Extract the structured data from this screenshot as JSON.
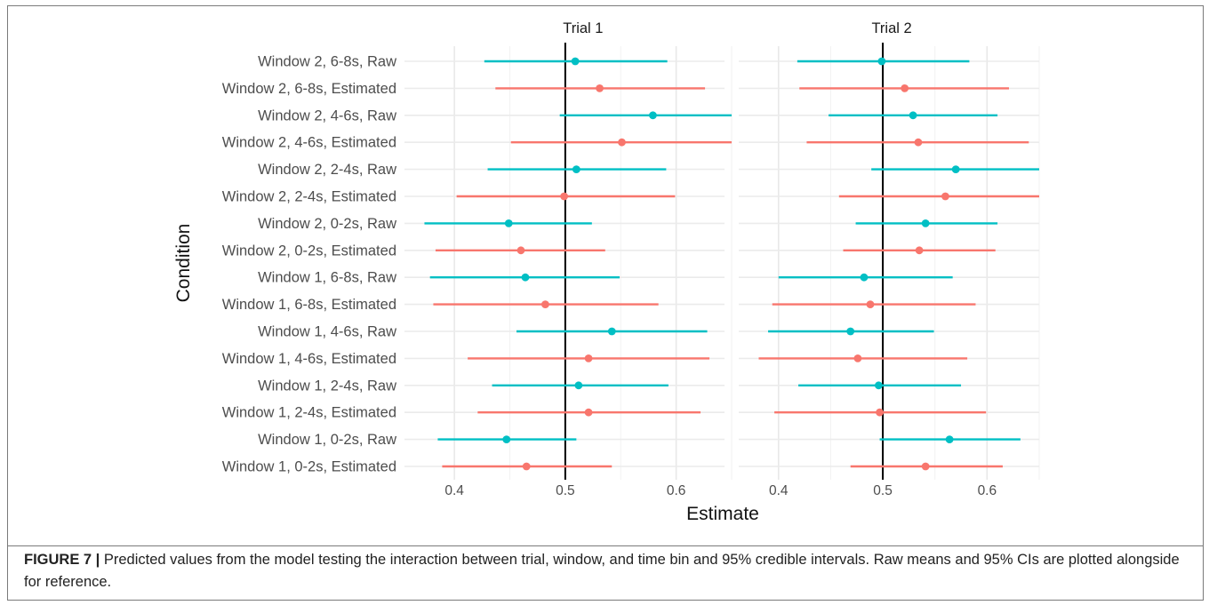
{
  "chart_data": {
    "type": "scatter",
    "xlabel": "Estimate",
    "ylabel": "Condition",
    "xlim": [
      0.355,
      0.65
    ],
    "x_ticks": [
      0.4,
      0.5,
      0.6
    ],
    "reference_line": 0.5,
    "grid": true,
    "legend": "none",
    "colors": {
      "Estimated": "#F8766D",
      "Raw": "#00BFC4"
    },
    "conditions": [
      "Window 2, 6-8s, Raw",
      "Window 2, 6-8s, Estimated",
      "Window 2, 4-6s, Raw",
      "Window 2, 4-6s, Estimated",
      "Window 2, 2-4s, Raw",
      "Window 2, 2-4s, Estimated",
      "Window 2, 0-2s, Raw",
      "Window 2, 0-2s, Estimated",
      "Window 1, 6-8s, Raw",
      "Window 1, 6-8s, Estimated",
      "Window 1, 4-6s, Raw",
      "Window 1, 4-6s, Estimated",
      "Window 1, 2-4s, Raw",
      "Window 1, 2-4s, Estimated",
      "Window 1, 0-2s, Raw",
      "Window 1, 0-2s, Estimated"
    ],
    "panels": [
      {
        "title": "Trial 1",
        "points": [
          {
            "est": 0.509,
            "lo": 0.427,
            "hi": 0.592
          },
          {
            "est": 0.531,
            "lo": 0.437,
            "hi": 0.626
          },
          {
            "est": 0.579,
            "lo": 0.495,
            "hi": 0.664
          },
          {
            "est": 0.551,
            "lo": 0.451,
            "hi": 0.651
          },
          {
            "est": 0.51,
            "lo": 0.43,
            "hi": 0.591
          },
          {
            "est": 0.499,
            "lo": 0.402,
            "hi": 0.599
          },
          {
            "est": 0.449,
            "lo": 0.373,
            "hi": 0.524
          },
          {
            "est": 0.46,
            "lo": 0.383,
            "hi": 0.536
          },
          {
            "est": 0.464,
            "lo": 0.378,
            "hi": 0.549
          },
          {
            "est": 0.482,
            "lo": 0.381,
            "hi": 0.584
          },
          {
            "est": 0.542,
            "lo": 0.456,
            "hi": 0.628
          },
          {
            "est": 0.521,
            "lo": 0.412,
            "hi": 0.63
          },
          {
            "est": 0.512,
            "lo": 0.434,
            "hi": 0.593
          },
          {
            "est": 0.521,
            "lo": 0.421,
            "hi": 0.622
          },
          {
            "est": 0.447,
            "lo": 0.385,
            "hi": 0.51
          },
          {
            "est": 0.465,
            "lo": 0.389,
            "hi": 0.542
          }
        ]
      },
      {
        "title": "Trial 2",
        "points": [
          {
            "est": 0.499,
            "lo": 0.418,
            "hi": 0.583
          },
          {
            "est": 0.521,
            "lo": 0.42,
            "hi": 0.621
          },
          {
            "est": 0.529,
            "lo": 0.448,
            "hi": 0.61
          },
          {
            "est": 0.534,
            "lo": 0.427,
            "hi": 0.64
          },
          {
            "est": 0.57,
            "lo": 0.489,
            "hi": 0.65
          },
          {
            "est": 0.56,
            "lo": 0.458,
            "hi": 0.65
          },
          {
            "est": 0.541,
            "lo": 0.474,
            "hi": 0.61
          },
          {
            "est": 0.535,
            "lo": 0.462,
            "hi": 0.608
          },
          {
            "est": 0.482,
            "lo": 0.4,
            "hi": 0.567
          },
          {
            "est": 0.488,
            "lo": 0.394,
            "hi": 0.589
          },
          {
            "est": 0.469,
            "lo": 0.39,
            "hi": 0.549
          },
          {
            "est": 0.476,
            "lo": 0.381,
            "hi": 0.581
          },
          {
            "est": 0.496,
            "lo": 0.419,
            "hi": 0.575
          },
          {
            "est": 0.497,
            "lo": 0.396,
            "hi": 0.599
          },
          {
            "est": 0.564,
            "lo": 0.497,
            "hi": 0.632
          },
          {
            "est": 0.541,
            "lo": 0.469,
            "hi": 0.615
          }
        ]
      }
    ]
  },
  "caption": {
    "label": "FIGURE 7 |",
    "text": " Predicted values from the model testing the interaction between trial, window, and time bin and 95% credible intervals. Raw means and 95% CIs are plotted alongside for reference."
  }
}
